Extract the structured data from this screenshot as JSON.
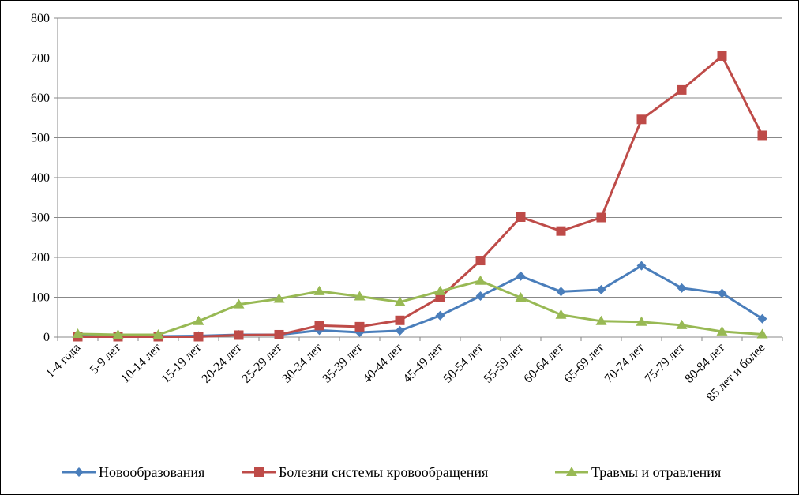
{
  "chart_data": {
    "type": "line",
    "title": "",
    "xlabel": "",
    "ylabel": "",
    "ylim": [
      0,
      800
    ],
    "yticks": [
      0,
      100,
      200,
      300,
      400,
      500,
      600,
      700,
      800
    ],
    "grid": "horizontal",
    "legend_position": "bottom",
    "categories": [
      "1-4 года",
      "5-9 лет",
      "10-14 лет",
      "15-19 лет",
      "20-24 лет",
      "25-29 лет",
      "30-34 лет",
      "35-39 лет",
      "40-44 лет",
      "45-49 лет",
      "50-54 лет",
      "55-59 лет",
      "60-64 лет",
      "65-69 лет",
      "70-74 лет",
      "75-79 лет",
      "80-84 лет",
      "85 лет и более"
    ],
    "series": [
      {
        "name": "Новообразования",
        "color": "#4A7EBB",
        "marker": "diamond",
        "values": [
          2,
          2,
          2,
          3,
          6,
          6,
          17,
          12,
          16,
          54,
          103,
          153,
          114,
          119,
          179,
          123,
          110,
          46
        ]
      },
      {
        "name": "Болезни системы кровообращения",
        "color": "#BE4B48",
        "marker": "square",
        "values": [
          1,
          1,
          1,
          1,
          5,
          6,
          29,
          26,
          42,
          100,
          192,
          301,
          266,
          300,
          546,
          620,
          705,
          506
        ]
      },
      {
        "name": "Травмы и отравления",
        "color": "#98B954",
        "marker": "triangle",
        "values": [
          8,
          6,
          6,
          40,
          82,
          96,
          115,
          102,
          88,
          115,
          141,
          99,
          56,
          40,
          38,
          30,
          14,
          7
        ]
      }
    ]
  }
}
